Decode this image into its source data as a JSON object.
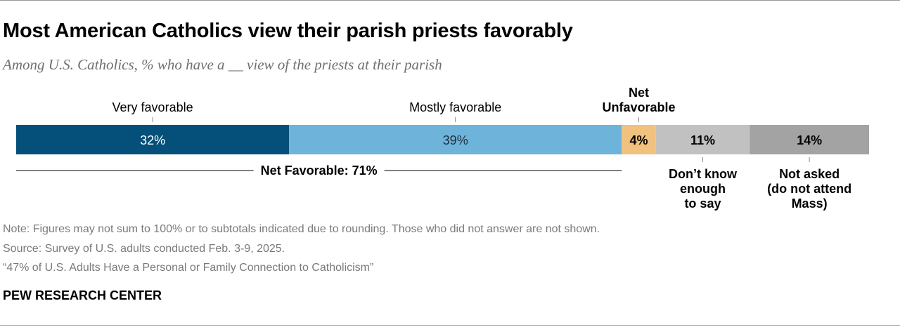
{
  "title": "Most American Catholics view their parish priests favorably",
  "subtitle": "Among U.S. Catholics, % who have a __ view of the priests at their parish",
  "chart_data": {
    "type": "bar",
    "orientation": "horizontal-stacked",
    "xlim": [
      0,
      100
    ],
    "segments": [
      {
        "label": "Very favorable",
        "value": 32,
        "value_label": "32%",
        "color": "#05507a",
        "text_color": "#ffffff"
      },
      {
        "label": "Mostly favorable",
        "value": 39,
        "value_label": "39%",
        "color": "#6eb3d9",
        "text_color": "#1f2f3a"
      },
      {
        "label": "Net Unfavorable",
        "value": 4,
        "value_label": "4%",
        "color": "#f1c17e",
        "text_color": "#000000"
      },
      {
        "label": "Don’t know enough to say",
        "value": 11,
        "value_label": "11%",
        "color": "#c1c1c1",
        "text_color": "#000000"
      },
      {
        "label": "Not asked (do not attend Mass)",
        "value": 14,
        "value_label": "14%",
        "color": "#a3a3a3",
        "text_color": "#000000"
      }
    ],
    "top_labels": [
      {
        "segment": 0,
        "lines": [
          "Very favorable"
        ],
        "bold": false
      },
      {
        "segment": 1,
        "lines": [
          "Mostly favorable"
        ],
        "bold": false
      },
      {
        "segment": 2,
        "lines": [
          "Net",
          "Unfavorable"
        ],
        "bold": true
      }
    ],
    "bottom_labels": [
      {
        "segment": 3,
        "lines": [
          "Don’t know",
          "enough",
          "to say"
        ]
      },
      {
        "segment": 4,
        "lines": [
          "Not asked",
          "(do not attend",
          "Mass)"
        ]
      }
    ],
    "net_favorable": {
      "label": "Net Favorable: 71%",
      "value": 71,
      "segments": [
        0,
        1
      ]
    }
  },
  "notes": {
    "note": "Note: Figures may not sum to 100% or to subtotals indicated due to rounding. Those who did not answer are not shown.",
    "source": "Source: Survey of U.S. adults conducted Feb. 3-9, 2025.",
    "report": "“47% of U.S. Adults Have a Personal or Family Connection to Catholicism”"
  },
  "brand": "PEW RESEARCH CENTER"
}
